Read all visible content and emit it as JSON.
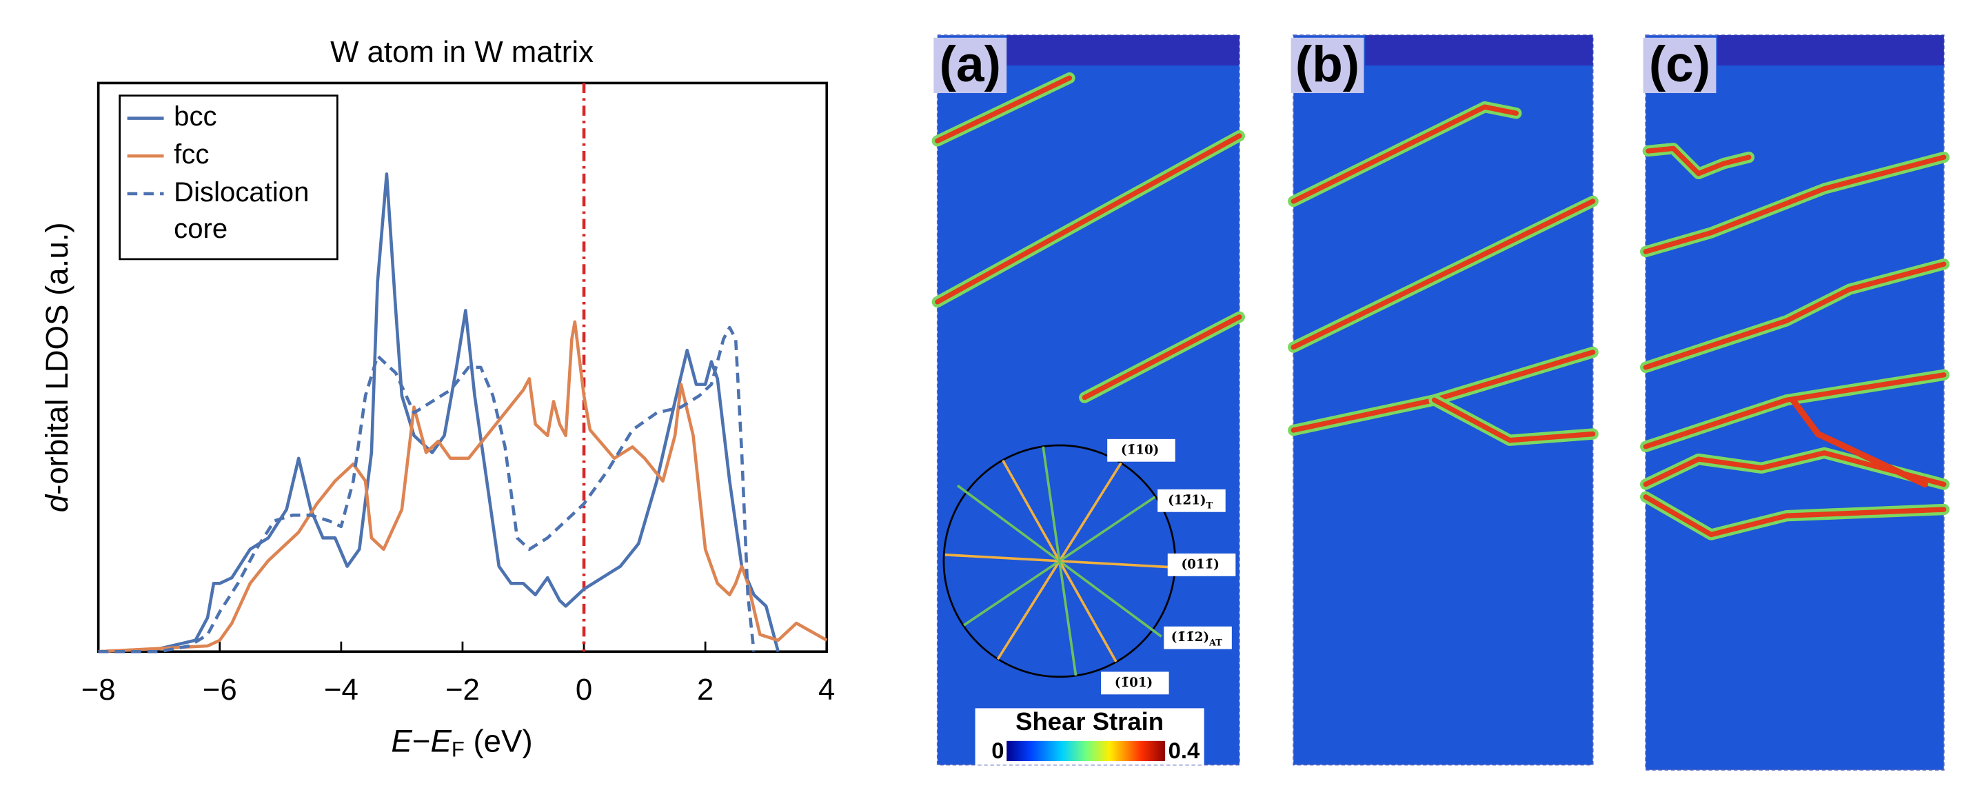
{
  "chart_data": {
    "type": "line",
    "title": "W atom in W matrix",
    "x_label": [
      "E",
      "−",
      "E",
      "F",
      " (eV)"
    ],
    "y_label": [
      "d",
      "-orbital LDOS (a.u.)"
    ],
    "xlim": [
      -8,
      4
    ],
    "ylim": [
      0,
      1
    ],
    "xticks": [
      {
        "value": -8,
        "label": "−8"
      },
      {
        "value": -6,
        "label": "−6"
      },
      {
        "value": -4,
        "label": "−4"
      },
      {
        "value": -2,
        "label": "−2"
      },
      0,
      2,
      4
    ],
    "vline": {
      "x": 0,
      "color": "#d62728"
    },
    "legend": "upper left",
    "series": [
      {
        "name": "bcc",
        "color": "#4c72b0",
        "style": "solid",
        "x": [
          -8,
          -7,
          -6.4,
          -6.2,
          -6.1,
          -6,
          -5.8,
          -5.5,
          -5.2,
          -4.9,
          -4.7,
          -4.5,
          -4.3,
          -4.1,
          -3.9,
          -3.7,
          -3.5,
          -3.4,
          -3.25,
          -3.1,
          -3,
          -2.8,
          -2.5,
          -2.3,
          -2.1,
          -1.95,
          -1.8,
          -1.6,
          -1.4,
          -1.2,
          -1,
          -0.8,
          -0.6,
          -0.4,
          -0.3,
          -0.1,
          0,
          0.3,
          0.6,
          0.9,
          1.2,
          1.5,
          1.7,
          1.85,
          2,
          2.1,
          2.2,
          2.4,
          2.6,
          2.8,
          3,
          3.1,
          3.2
        ],
        "values": [
          0,
          0.005,
          0.02,
          0.06,
          0.12,
          0.12,
          0.13,
          0.18,
          0.2,
          0.25,
          0.34,
          0.25,
          0.2,
          0.2,
          0.15,
          0.18,
          0.35,
          0.65,
          0.84,
          0.6,
          0.45,
          0.38,
          0.35,
          0.38,
          0.5,
          0.6,
          0.45,
          0.3,
          0.15,
          0.12,
          0.12,
          0.1,
          0.13,
          0.09,
          0.08,
          0.1,
          0.11,
          0.13,
          0.15,
          0.19,
          0.3,
          0.44,
          0.53,
          0.47,
          0.47,
          0.51,
          0.48,
          0.3,
          0.15,
          0.1,
          0.08,
          0.04,
          0
        ]
      },
      {
        "name": "fcc",
        "color": "#dd8452",
        "style": "solid",
        "x": [
          -8,
          -6.2,
          -6,
          -5.8,
          -5.5,
          -5.2,
          -5,
          -4.7,
          -4.4,
          -4.1,
          -3.8,
          -3.6,
          -3.5,
          -3.3,
          -3,
          -2.8,
          -2.6,
          -2.4,
          -2.2,
          -1.9,
          -1.6,
          -1.3,
          -1,
          -0.9,
          -0.8,
          -0.6,
          -0.5,
          -0.4,
          -0.3,
          -0.2,
          -0.15,
          0,
          0.1,
          0.5,
          0.8,
          1,
          1.3,
          1.5,
          1.6,
          1.8,
          2,
          2.2,
          2.4,
          2.5,
          2.6,
          2.7,
          2.9,
          3.2,
          3.5,
          4
        ],
        "values": [
          0,
          0.01,
          0.02,
          0.05,
          0.12,
          0.16,
          0.18,
          0.21,
          0.26,
          0.3,
          0.33,
          0.3,
          0.2,
          0.18,
          0.25,
          0.43,
          0.35,
          0.37,
          0.34,
          0.34,
          0.38,
          0.42,
          0.46,
          0.48,
          0.4,
          0.38,
          0.44,
          0.4,
          0.38,
          0.55,
          0.58,
          0.45,
          0.39,
          0.34,
          0.36,
          0.34,
          0.3,
          0.38,
          0.47,
          0.38,
          0.18,
          0.12,
          0.1,
          0.12,
          0.15,
          0.12,
          0.03,
          0.02,
          0.05,
          0.02
        ]
      },
      {
        "name": "Dislocation core",
        "color": "#4c72b0",
        "style": "dashed",
        "x": [
          -8,
          -7,
          -6.5,
          -6.2,
          -6,
          -5.7,
          -5.4,
          -5.1,
          -4.8,
          -4.5,
          -4.2,
          -4,
          -3.8,
          -3.6,
          -3.4,
          -3.1,
          -2.8,
          -2.5,
          -2.2,
          -1.9,
          -1.7,
          -1.5,
          -1.3,
          -1.1,
          -0.9,
          -0.6,
          -0.3,
          0,
          0.4,
          0.8,
          1.2,
          1.6,
          1.9,
          2.1,
          2.3,
          2.4,
          2.5,
          2.6,
          2.7,
          2.8
        ],
        "values": [
          0,
          0,
          0.01,
          0.03,
          0.07,
          0.12,
          0.18,
          0.23,
          0.24,
          0.24,
          0.23,
          0.22,
          0.3,
          0.45,
          0.52,
          0.49,
          0.42,
          0.44,
          0.46,
          0.5,
          0.5,
          0.45,
          0.36,
          0.2,
          0.18,
          0.2,
          0.23,
          0.26,
          0.32,
          0.39,
          0.42,
          0.43,
          0.45,
          0.47,
          0.55,
          0.57,
          0.55,
          0.35,
          0.1,
          0
        ]
      }
    ]
  },
  "panels": {
    "labels": [
      "(a)",
      "(b)",
      "(c)"
    ],
    "inset": {
      "planes": [
        [
          "(1̄10)",
          ""
        ],
        [
          "(12̄1)",
          "T"
        ],
        [
          "(011̄)",
          ""
        ],
        [
          "(1̄1̄2)",
          "AT"
        ],
        [
          "(1̄01)",
          ""
        ]
      ]
    },
    "colorbar": {
      "title": "Shear Strain",
      "min": "0",
      "max": "0.4"
    }
  }
}
